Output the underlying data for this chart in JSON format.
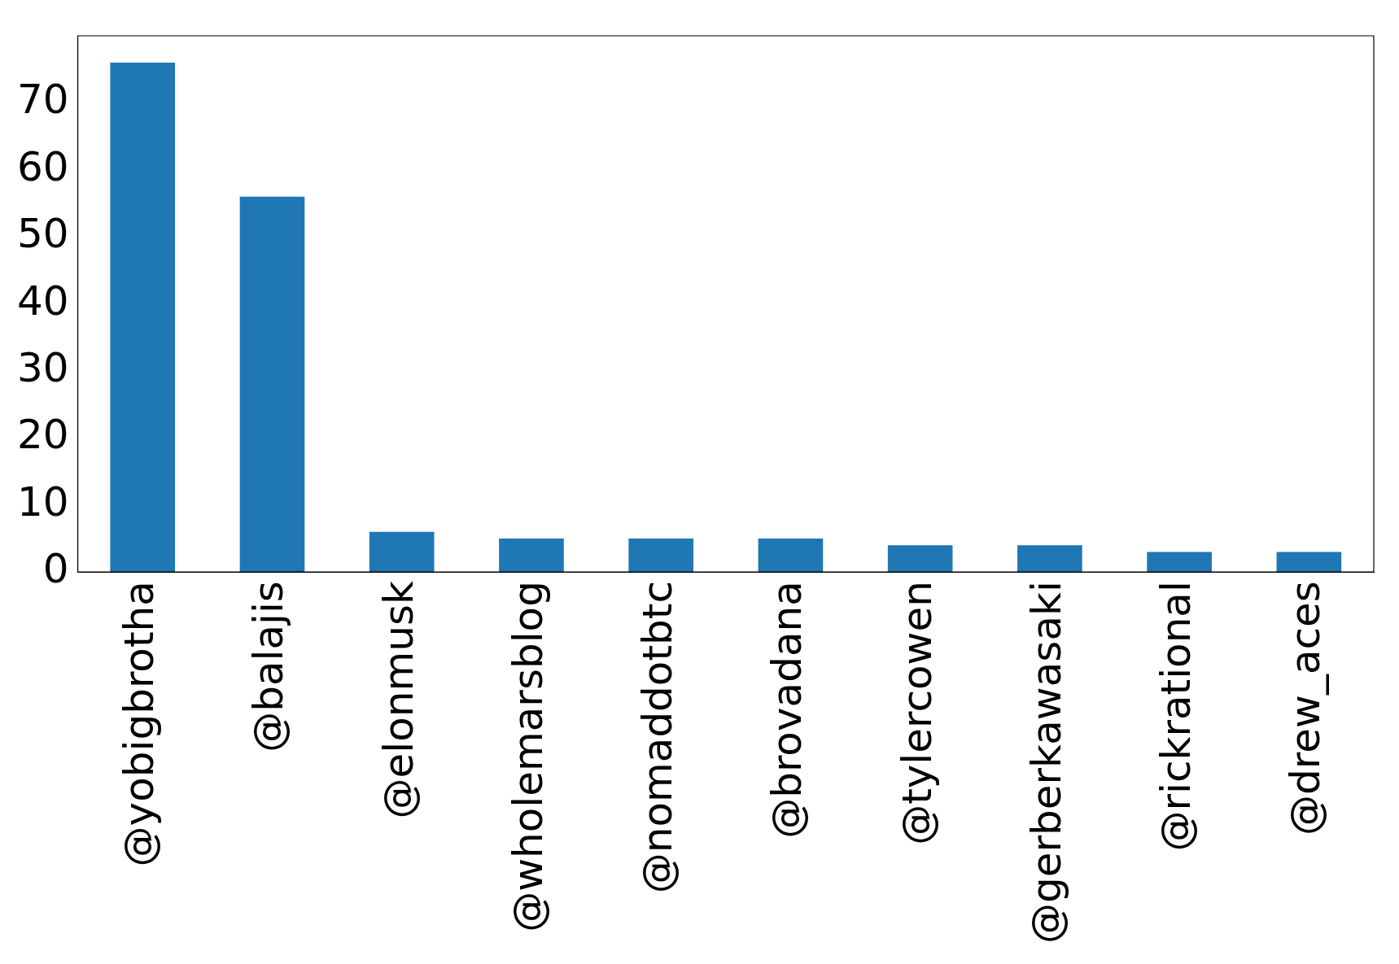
{
  "chart_data": {
    "type": "bar",
    "categories": [
      "@yobigbrotha",
      "@balajis",
      "@elonmusk",
      "@wholemarsblog",
      "@nomaddotbtc",
      "@brovadana",
      "@tylercowen",
      "@gerberkawasaki",
      "@rickrational",
      "@drew_aces"
    ],
    "values": [
      76,
      56,
      6,
      5,
      5,
      5,
      4,
      4,
      3,
      3
    ],
    "color": "#1f77b4",
    "ylim": [
      0,
      80
    ],
    "yticks": [
      0,
      10,
      20,
      30,
      40,
      50,
      60,
      70
    ],
    "grid": false,
    "legend": false
  }
}
